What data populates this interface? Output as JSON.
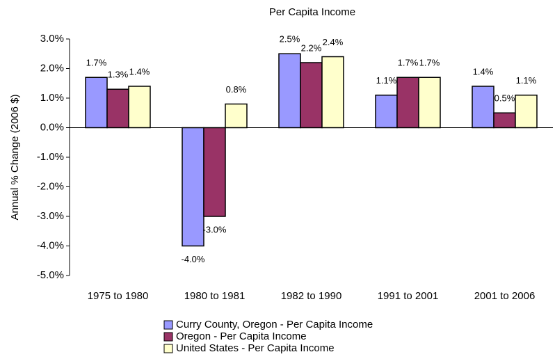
{
  "chart_data": {
    "type": "bar",
    "title": "Per Capita Income",
    "y_label": "Annual % Change (2006 $)",
    "categories": [
      "1975 to 1980",
      "1980 to 1981",
      "1982 to 1990",
      "1991 to 2001",
      "2001 to 2006"
    ],
    "series": [
      {
        "name": "Curry County, Oregon - Per Capita Income",
        "color": "#9999ff",
        "values": [
          1.7,
          -4.0,
          2.5,
          1.1,
          1.4
        ],
        "value_labels": [
          "1.7%",
          "-4.0%",
          "2.5%",
          "1.1%",
          "1.4%"
        ]
      },
      {
        "name": "Oregon - Per Capita Income",
        "color": "#993366",
        "values": [
          1.3,
          -3.0,
          2.2,
          1.7,
          0.5
        ],
        "value_labels": [
          "1.3%",
          "-3.0%",
          "2.2%",
          "1.7%",
          "0.5%"
        ]
      },
      {
        "name": "United States - Per Capita Income",
        "color": "#ffffcc",
        "values": [
          1.4,
          0.8,
          2.4,
          1.7,
          1.1
        ],
        "value_labels": [
          "1.4%",
          "0.8%",
          "2.4%",
          "1.7%",
          "1.1%"
        ]
      }
    ],
    "ylim": [
      -5,
      3
    ],
    "yticks": [
      {
        "value": -5,
        "label": "-5.0%"
      },
      {
        "value": -4,
        "label": "-4.0%"
      },
      {
        "value": -3,
        "label": "-3.0%"
      },
      {
        "value": -2,
        "label": "-2.0%"
      },
      {
        "value": -1,
        "label": "-1.0%"
      },
      {
        "value": 0,
        "label": "0.0%"
      },
      {
        "value": 1,
        "label": "1.0%"
      },
      {
        "value": 2,
        "label": "2.0%"
      },
      {
        "value": 3,
        "label": "3.0%"
      }
    ],
    "grid": false,
    "legend": "bottom"
  }
}
